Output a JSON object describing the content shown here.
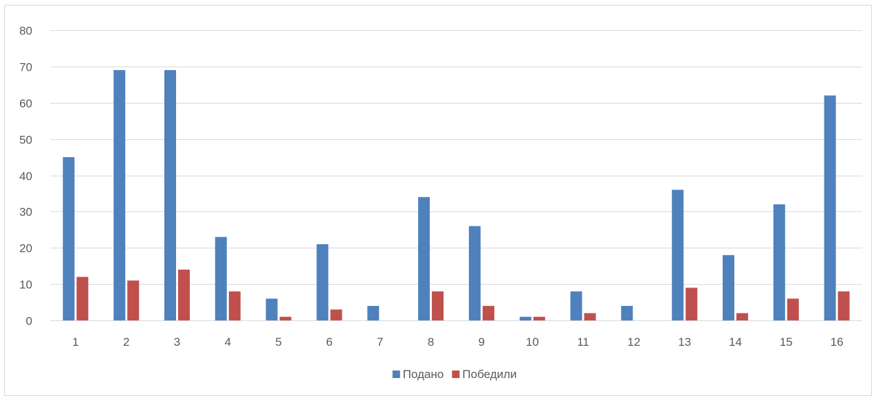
{
  "chart_data": {
    "type": "bar",
    "categories": [
      "1",
      "2",
      "3",
      "4",
      "5",
      "6",
      "7",
      "8",
      "9",
      "10",
      "11",
      "12",
      "13",
      "14",
      "15",
      "16"
    ],
    "series": [
      {
        "name": "Подано",
        "color": "#4f81bd",
        "values": [
          45,
          69,
          69,
          23,
          6,
          21,
          4,
          34,
          26,
          1,
          8,
          4,
          36,
          18,
          32,
          62
        ]
      },
      {
        "name": "Победили",
        "color": "#c0504d",
        "values": [
          12,
          11,
          14,
          8,
          1,
          3,
          0,
          8,
          4,
          1,
          2,
          0,
          9,
          2,
          6,
          8
        ]
      }
    ],
    "yticks": [
      0,
      10,
      20,
      30,
      40,
      50,
      60,
      70,
      80
    ],
    "ylim": [
      0,
      80
    ],
    "grid": true,
    "legend_position": "bottom"
  }
}
